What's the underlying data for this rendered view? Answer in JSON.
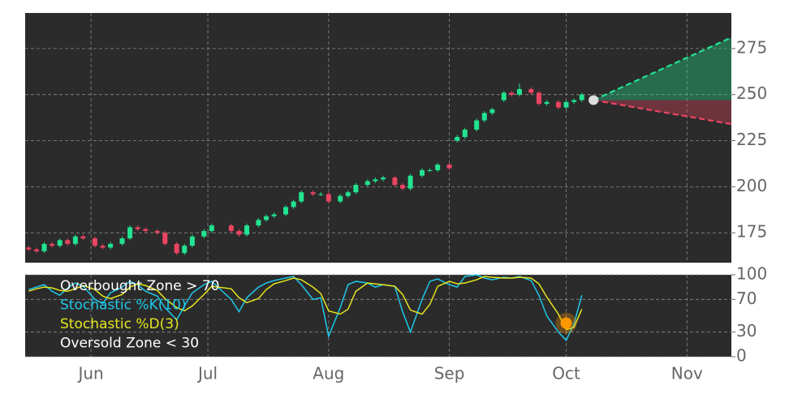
{
  "chart_data": [
    {
      "type": "candlestick",
      "x": [
        -16,
        -14,
        -12,
        -10,
        -8,
        -6,
        -4,
        -2,
        1,
        3,
        5,
        8,
        10,
        12,
        14,
        17,
        19,
        22,
        24,
        26,
        29,
        31,
        36,
        38,
        40,
        43,
        45,
        47,
        50,
        52,
        54,
        57,
        59,
        61,
        64,
        66,
        68,
        71,
        73,
        75,
        78,
        80,
        82,
        85,
        87,
        89,
        92,
        94,
        96,
        99,
        101,
        103,
        106,
        108,
        110,
        113,
        115,
        117,
        120,
        122,
        124,
        126
      ],
      "open": [
        167,
        166,
        165,
        169,
        168,
        171,
        169,
        173,
        172,
        168,
        167,
        169,
        172,
        178,
        177,
        176,
        175,
        169,
        164,
        168,
        173,
        176,
        179,
        176,
        174,
        179,
        182,
        184,
        185,
        189,
        192,
        197,
        196,
        196,
        192,
        195,
        197,
        201,
        203,
        204,
        205,
        201,
        199,
        206,
        209,
        209,
        212,
        225,
        227,
        231,
        236,
        240,
        247,
        251,
        250,
        253,
        251,
        245,
        246,
        243,
        246,
        247
      ],
      "high": [
        168,
        167,
        170,
        170,
        172,
        172,
        174,
        174,
        173,
        169,
        170,
        173,
        179,
        179,
        178,
        177,
        176,
        170,
        169,
        174,
        177,
        180,
        180,
        177,
        180,
        183,
        185,
        186,
        190,
        193,
        198,
        198,
        197,
        197,
        196,
        198,
        202,
        204,
        205,
        206,
        206,
        202,
        207,
        210,
        210,
        213,
        213,
        228,
        232,
        237,
        241,
        243,
        252,
        252,
        256,
        254,
        252,
        247,
        247,
        247,
        248,
        251
      ],
      "low": [
        165,
        164,
        164,
        167,
        167,
        168,
        168,
        171,
        167,
        166,
        166,
        168,
        171,
        176,
        175,
        174,
        168,
        163,
        163,
        167,
        172,
        175,
        175,
        173,
        173,
        178,
        181,
        183,
        184,
        188,
        191,
        195,
        195,
        191,
        191,
        194,
        196,
        200,
        202,
        203,
        200,
        198,
        198,
        205,
        208,
        208,
        209,
        224,
        226,
        230,
        235,
        239,
        246,
        249,
        249,
        250,
        244,
        244,
        242,
        242,
        245,
        246
      ],
      "close": [
        166,
        165,
        169,
        168,
        171,
        169,
        173,
        172,
        168,
        167,
        169,
        172,
        178,
        177,
        176,
        175,
        169,
        164,
        168,
        173,
        176,
        179,
        176,
        174,
        179,
        182,
        184,
        185,
        189,
        192,
        197,
        196,
        196,
        192,
        195,
        197,
        201,
        203,
        204,
        205,
        201,
        199,
        206,
        209,
        209,
        212,
        210,
        227,
        231,
        236,
        240,
        242,
        251,
        250,
        253,
        251,
        245,
        246,
        243,
        246,
        247,
        250
      ],
      "up_color": "#22e391",
      "down_color": "#ea4561",
      "xlim": [
        -16.9,
        164.4
      ],
      "ylim": [
        158.8,
        294.3
      ],
      "yticks": [
        175,
        200,
        225,
        250,
        275
      ],
      "grid": true,
      "forecast": {
        "x": [
          129,
          164.4
        ],
        "upper": [
          247,
          281
        ],
        "lower": [
          247,
          234
        ],
        "upper_color": "#22e391",
        "lower_color": "#ea4561",
        "marker_color": "#dddddd"
      }
    },
    {
      "type": "line",
      "x": [
        -16,
        -14,
        -12,
        -10,
        -8,
        -6,
        -4,
        -2,
        1,
        3,
        5,
        8,
        10,
        12,
        14,
        17,
        19,
        22,
        24,
        26,
        29,
        31,
        36,
        38,
        40,
        43,
        45,
        47,
        50,
        52,
        54,
        57,
        59,
        61,
        64,
        66,
        68,
        71,
        73,
        75,
        78,
        80,
        82,
        85,
        87,
        89,
        92,
        94,
        96,
        99,
        101,
        103,
        106,
        108,
        110,
        113,
        115,
        117,
        120,
        122,
        124,
        126
      ],
      "series": [
        {
          "name": "Stochastic %K(10)",
          "color": "#1ec8ea",
          "values": [
            82,
            85,
            88,
            80,
            75,
            84,
            90,
            86,
            70,
            65,
            78,
            85,
            92,
            88,
            80,
            74,
            60,
            45,
            62,
            78,
            88,
            92,
            70,
            55,
            72,
            85,
            90,
            93,
            96,
            98,
            88,
            70,
            72,
            25,
            60,
            88,
            92,
            90,
            85,
            88,
            86,
            55,
            30,
            70,
            92,
            95,
            88,
            85,
            98,
            100,
            96,
            94,
            97,
            96,
            98,
            93,
            75,
            50,
            30,
            20,
            40,
            75
          ]
        },
        {
          "name": "Stochastic %D(3)",
          "color": "#e4e61e",
          "values": [
            80,
            83,
            85,
            84,
            81,
            80,
            83,
            87,
            82,
            74,
            71,
            76,
            85,
            89,
            87,
            81,
            71,
            60,
            56,
            62,
            76,
            86,
            83,
            72,
            66,
            71,
            82,
            89,
            93,
            96,
            94,
            85,
            77,
            56,
            52,
            58,
            80,
            90,
            89,
            88,
            86,
            76,
            57,
            52,
            64,
            86,
            92,
            89,
            90,
            94,
            98,
            97,
            96,
            96,
            97,
            96,
            89,
            73,
            52,
            33,
            36,
            58
          ]
        }
      ],
      "annotations": [
        "Overbought Zone > 70",
        "Oversold Zone < 30"
      ],
      "signal": {
        "x": 122,
        "value": 41,
        "color": "#ff9800"
      },
      "xlim": [
        -16.9,
        164.4
      ],
      "xticks": [
        {
          "value": 0,
          "label": "Jun"
        },
        {
          "value": 30,
          "label": "Jul"
        },
        {
          "value": 61,
          "label": "Aug"
        },
        {
          "value": 92,
          "label": "Sep"
        },
        {
          "value": 122,
          "label": "Oct"
        },
        {
          "value": 153,
          "label": "Nov"
        }
      ],
      "ylim": [
        0,
        100
      ],
      "yticks": [
        0,
        30,
        70,
        100
      ],
      "grid": true
    }
  ]
}
